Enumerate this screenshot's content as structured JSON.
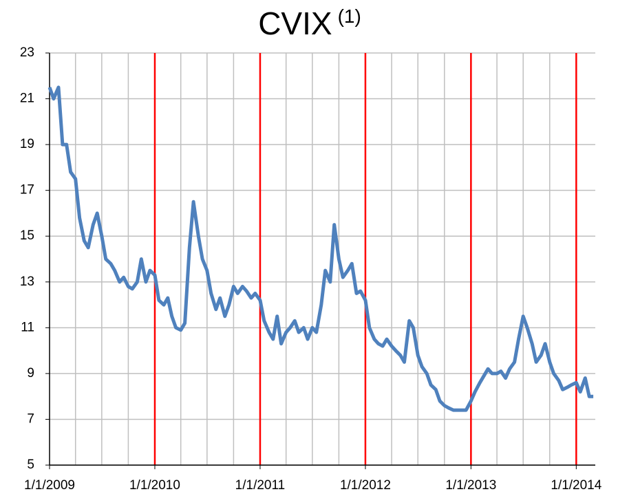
{
  "chart_data": {
    "type": "line",
    "title": "CVIX",
    "title_superscript": "(1)",
    "x": [
      "2009-01-01",
      "2009-01-15",
      "2009-02-01",
      "2009-02-15",
      "2009-03-01",
      "2009-03-15",
      "2009-04-01",
      "2009-04-15",
      "2009-05-01",
      "2009-05-15",
      "2009-06-01",
      "2009-06-15",
      "2009-07-01",
      "2009-07-15",
      "2009-08-01",
      "2009-08-15",
      "2009-09-01",
      "2009-09-15",
      "2009-10-01",
      "2009-10-15",
      "2009-11-01",
      "2009-11-15",
      "2009-12-01",
      "2009-12-15",
      "2010-01-01",
      "2010-01-15",
      "2010-02-01",
      "2010-02-15",
      "2010-03-01",
      "2010-03-15",
      "2010-04-01",
      "2010-04-15",
      "2010-05-01",
      "2010-05-15",
      "2010-06-01",
      "2010-06-15",
      "2010-07-01",
      "2010-07-15",
      "2010-08-01",
      "2010-08-15",
      "2010-09-01",
      "2010-09-15",
      "2010-10-01",
      "2010-10-15",
      "2010-11-01",
      "2010-11-15",
      "2010-12-01",
      "2010-12-15",
      "2011-01-01",
      "2011-01-15",
      "2011-02-01",
      "2011-02-15",
      "2011-03-01",
      "2011-03-15",
      "2011-04-01",
      "2011-04-15",
      "2011-05-01",
      "2011-05-15",
      "2011-06-01",
      "2011-06-15",
      "2011-07-01",
      "2011-07-15",
      "2011-08-01",
      "2011-08-15",
      "2011-09-01",
      "2011-09-15",
      "2011-10-01",
      "2011-10-15",
      "2011-11-01",
      "2011-11-15",
      "2011-12-01",
      "2011-12-15",
      "2012-01-01",
      "2012-01-15",
      "2012-02-01",
      "2012-02-15",
      "2012-03-01",
      "2012-03-15",
      "2012-04-01",
      "2012-04-15",
      "2012-05-01",
      "2012-05-15",
      "2012-06-01",
      "2012-06-15",
      "2012-07-01",
      "2012-07-15",
      "2012-08-01",
      "2012-08-15",
      "2012-09-01",
      "2012-09-15",
      "2012-10-01",
      "2012-10-15",
      "2012-11-01",
      "2012-11-15",
      "2012-12-01",
      "2012-12-15",
      "2013-01-01",
      "2013-01-15",
      "2013-02-01",
      "2013-02-15",
      "2013-03-01",
      "2013-03-15",
      "2013-04-01",
      "2013-04-15",
      "2013-05-01",
      "2013-05-15",
      "2013-06-01",
      "2013-06-15",
      "2013-07-01",
      "2013-07-15",
      "2013-08-01",
      "2013-08-15",
      "2013-09-01",
      "2013-09-15",
      "2013-10-01",
      "2013-10-15",
      "2013-11-01",
      "2013-11-15",
      "2013-12-01",
      "2013-12-15",
      "2014-01-01",
      "2014-01-15",
      "2014-02-01",
      "2014-02-15",
      "2014-03-01"
    ],
    "series": [
      {
        "name": "CVIX",
        "color": "#4f81bd",
        "values": [
          21.5,
          21,
          21.5,
          19,
          19,
          17.8,
          17.5,
          15.8,
          14.8,
          14.5,
          15.5,
          16,
          15,
          14,
          13.8,
          13.5,
          13,
          13.2,
          12.8,
          12.7,
          13,
          14,
          13,
          13.5,
          13.3,
          12.2,
          12,
          12.3,
          11.5,
          11,
          10.9,
          11.2,
          14.5,
          16.5,
          15,
          14,
          13.5,
          12.5,
          11.8,
          12.3,
          11.5,
          12,
          12.8,
          12.5,
          12.8,
          12.6,
          12.3,
          12.5,
          12.2,
          11.3,
          10.8,
          10.5,
          11.5,
          10.3,
          10.8,
          11,
          11.3,
          10.8,
          11,
          10.5,
          11,
          10.8,
          12,
          13.5,
          13,
          15.5,
          14,
          13.2,
          13.5,
          13.8,
          12.5,
          12.6,
          12.2,
          11,
          10.5,
          10.3,
          10.2,
          10.5,
          10.2,
          10,
          9.8,
          9.5,
          11.3,
          11,
          9.8,
          9.3,
          9,
          8.5,
          8.3,
          7.8,
          7.6,
          7.5,
          7.4,
          7.4,
          7.4,
          7.4,
          7.8,
          8.2,
          8.6,
          8.9,
          9.2,
          9,
          9,
          9.1,
          8.8,
          9.2,
          9.5,
          10.5,
          11.5,
          11,
          10.3,
          9.5,
          9.8,
          10.3,
          9.5,
          9,
          8.7,
          8.3,
          8.4,
          8.5,
          8.6,
          8.2,
          8.8,
          8,
          8
        ]
      }
    ],
    "xlim": [
      "2009-01-01",
      "2014-03-08"
    ],
    "xticks": [
      {
        "value": "2009-01-01",
        "label": "1/1/2009"
      },
      {
        "value": "2010-01-01",
        "label": "1/1/2010"
      },
      {
        "value": "2011-01-01",
        "label": "1/1/2011"
      },
      {
        "value": "2012-01-01",
        "label": "1/1/2012"
      },
      {
        "value": "2013-01-01",
        "label": "1/1/2013"
      },
      {
        "value": "2014-01-01",
        "label": "1/1/2014"
      }
    ],
    "x_minor_ticks": [
      "2009-04-01",
      "2009-07-01",
      "2009-10-01",
      "2010-04-01",
      "2010-07-01",
      "2010-10-01",
      "2011-04-01",
      "2011-07-01",
      "2011-10-01",
      "2012-04-01",
      "2012-07-01",
      "2012-10-01",
      "2013-04-01",
      "2013-07-01",
      "2013-10-01"
    ],
    "year_line_color": "#ff0000",
    "ylim": [
      5,
      23
    ],
    "yticks": [
      5,
      7,
      9,
      11,
      13,
      15,
      17,
      19,
      21,
      23
    ],
    "grid": true
  }
}
